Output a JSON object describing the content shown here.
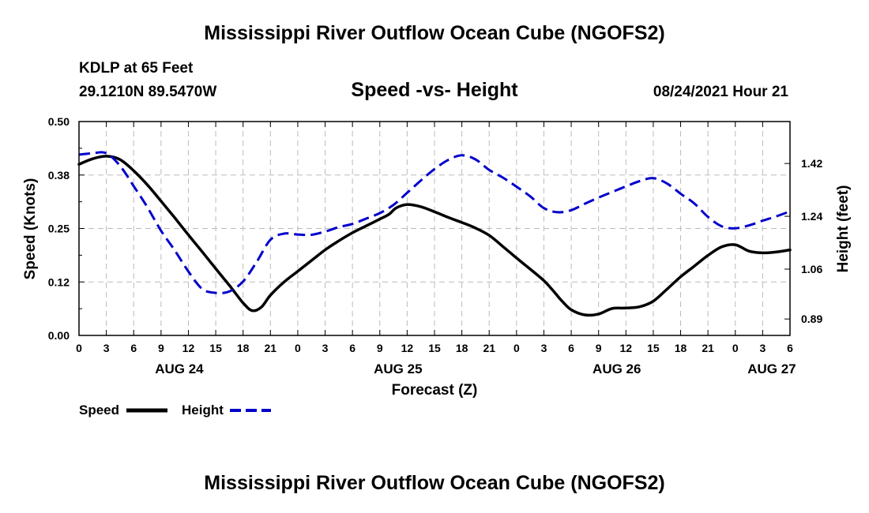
{
  "header": {
    "title": "Mississippi River Outflow Ocean Cube (NGOFS2)",
    "station": "KDLP at 65 Feet",
    "coords": "29.1210N  89.5470W",
    "subtitle": "Speed -vs- Height",
    "datetime": "08/24/2021 Hour 21"
  },
  "footer": {
    "title": "Mississippi River Outflow Ocean Cube (NGOFS2)"
  },
  "colors": {
    "speed": "#000000",
    "height": "#0000cc",
    "grid": "#bbbbbb"
  },
  "chart_data": {
    "type": "line",
    "title": "Speed -vs- Height",
    "xlabel": "Forecast (Z)",
    "ylabel": "Speed (Knots)",
    "y2label": "Height (feet)",
    "x_range": [
      0,
      78
    ],
    "ylim": [
      0,
      0.5
    ],
    "y2lim": [
      0.834,
      1.563
    ],
    "yticks": [
      0.0,
      0.125,
      0.25,
      0.375,
      0.5
    ],
    "ytick_labels": [
      "0.00",
      "0.12",
      "0.25",
      "0.38",
      "0.50"
    ],
    "y2ticks": [
      0.89,
      1.06,
      1.24,
      1.42
    ],
    "y2tick_labels": [
      "0.89",
      "1.06",
      "1.24",
      "1.42"
    ],
    "xticks": [
      0,
      3,
      6,
      9,
      12,
      15,
      18,
      21,
      24,
      27,
      30,
      33,
      36,
      39,
      42,
      45,
      48,
      51,
      54,
      57,
      60,
      63,
      66,
      69,
      72,
      75,
      78
    ],
    "xtick_labels": [
      "0",
      "3",
      "6",
      "9",
      "12",
      "15",
      "18",
      "21",
      "0",
      "3",
      "6",
      "9",
      "12",
      "15",
      "18",
      "21",
      "0",
      "3",
      "6",
      "9",
      "12",
      "15",
      "18",
      "21",
      "0",
      "3",
      "6"
    ],
    "day_labels": [
      {
        "x": 11,
        "label": "AUG 24"
      },
      {
        "x": 35,
        "label": "AUG 25"
      },
      {
        "x": 59,
        "label": "AUG 26"
      },
      {
        "x": 76,
        "label": "AUG 27"
      }
    ],
    "series": [
      {
        "name": "Speed",
        "axis": "left",
        "style": "solid",
        "x": [
          0,
          1.5,
          3,
          4.5,
          6,
          7.5,
          9,
          10.5,
          12,
          13.5,
          15,
          16.5,
          18,
          19,
          20,
          21,
          22.5,
          24,
          25.5,
          27,
          28.5,
          30,
          31.5,
          33,
          34,
          34.8,
          36,
          37.5,
          39,
          40.5,
          42,
          43.5,
          45,
          46.5,
          48,
          49.5,
          51,
          52,
          53,
          54,
          55.5,
          57,
          58.5,
          60,
          61.5,
          63,
          64.5,
          66,
          67.5,
          69,
          70.5,
          72,
          73.5,
          75,
          76.5,
          78
        ],
        "y": [
          0.4,
          0.413,
          0.419,
          0.411,
          0.385,
          0.352,
          0.314,
          0.275,
          0.235,
          0.196,
          0.156,
          0.117,
          0.076,
          0.058,
          0.066,
          0.094,
          0.125,
          0.15,
          0.175,
          0.2,
          0.221,
          0.24,
          0.256,
          0.272,
          0.283,
          0.298,
          0.306,
          0.301,
          0.289,
          0.276,
          0.264,
          0.251,
          0.234,
          0.208,
          0.181,
          0.155,
          0.128,
          0.105,
          0.08,
          0.06,
          0.048,
          0.05,
          0.063,
          0.064,
          0.067,
          0.08,
          0.108,
          0.137,
          0.162,
          0.187,
          0.207,
          0.212,
          0.197,
          0.193,
          0.195,
          0.2
        ]
      },
      {
        "name": "Height",
        "axis": "right",
        "style": "dashed",
        "x": [
          0,
          1.5,
          3,
          4.5,
          6,
          7.5,
          9,
          10.5,
          12,
          13.5,
          15,
          16.5,
          18,
          19.5,
          21,
          22.5,
          24,
          25.5,
          27,
          28.5,
          30,
          31.5,
          33,
          34.5,
          36,
          37.5,
          39,
          40.5,
          42,
          43.5,
          45,
          46.5,
          48,
          49.5,
          51,
          52.5,
          54,
          55.5,
          57,
          58.5,
          60,
          61.5,
          63,
          64.5,
          66,
          67.5,
          69,
          70.5,
          72,
          73.5,
          75,
          76.5,
          78
        ],
        "y": [
          1.45,
          1.455,
          1.455,
          1.412,
          1.343,
          1.271,
          1.191,
          1.124,
          1.052,
          0.993,
          0.979,
          0.984,
          1.018,
          1.085,
          1.16,
          1.181,
          1.178,
          1.177,
          1.188,
          1.203,
          1.214,
          1.232,
          1.251,
          1.279,
          1.32,
          1.362,
          1.401,
          1.432,
          1.448,
          1.434,
          1.398,
          1.372,
          1.341,
          1.308,
          1.268,
          1.254,
          1.261,
          1.283,
          1.304,
          1.323,
          1.342,
          1.36,
          1.37,
          1.352,
          1.317,
          1.284,
          1.238,
          1.206,
          1.199,
          1.209,
          1.225,
          1.24,
          1.257
        ]
      }
    ],
    "legend": [
      {
        "label": "Speed",
        "style": "solid"
      },
      {
        "label": "Height",
        "style": "dashed"
      }
    ],
    "legend_position": "bottom-left",
    "grid": true
  }
}
